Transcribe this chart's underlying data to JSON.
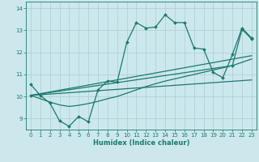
{
  "xlabel": "Humidex (Indice chaleur)",
  "xlim": [
    -0.5,
    23.5
  ],
  "ylim": [
    8.5,
    14.3
  ],
  "xticks": [
    0,
    1,
    2,
    3,
    4,
    5,
    6,
    7,
    8,
    9,
    10,
    11,
    12,
    13,
    14,
    15,
    16,
    17,
    18,
    19,
    20,
    21,
    22,
    23
  ],
  "yticks": [
    9,
    10,
    11,
    12,
    13,
    14
  ],
  "bg_color": "#cce8ed",
  "line_color": "#1a7a6e",
  "grid_color": "#aacdd4",
  "series1_x": [
    0,
    1,
    2,
    3,
    4,
    5,
    6,
    7,
    8,
    9,
    10,
    11,
    12,
    13,
    14,
    15,
    16,
    17,
    18,
    19,
    20,
    21,
    22,
    23
  ],
  "series1_y": [
    10.55,
    10.05,
    9.7,
    8.9,
    8.65,
    9.1,
    8.85,
    10.3,
    10.7,
    10.65,
    12.45,
    13.35,
    13.1,
    13.15,
    13.7,
    13.35,
    13.35,
    12.2,
    12.15,
    11.1,
    10.85,
    11.9,
    13.1,
    12.65
  ],
  "series2_x": [
    0,
    23
  ],
  "series2_y": [
    10.05,
    11.85
  ],
  "series3_x": [
    0,
    23
  ],
  "series3_y": [
    10.05,
    10.75
  ],
  "series4_x": [
    0,
    1,
    2,
    3,
    4,
    5,
    6,
    7,
    8,
    9,
    10,
    11,
    12,
    13,
    14,
    15,
    16,
    17,
    18,
    19,
    20,
    21,
    22,
    23
  ],
  "series4_y": [
    10.05,
    9.9,
    9.75,
    9.62,
    9.55,
    9.6,
    9.68,
    9.78,
    9.9,
    10.0,
    10.15,
    10.3,
    10.45,
    10.58,
    10.7,
    10.8,
    10.9,
    11.0,
    11.1,
    11.2,
    11.3,
    11.4,
    11.55,
    11.7
  ],
  "series5_x": [
    0,
    21,
    22,
    23
  ],
  "series5_y": [
    10.05,
    11.4,
    13.05,
    12.6
  ],
  "markersize": 2.0,
  "linewidth": 0.9
}
